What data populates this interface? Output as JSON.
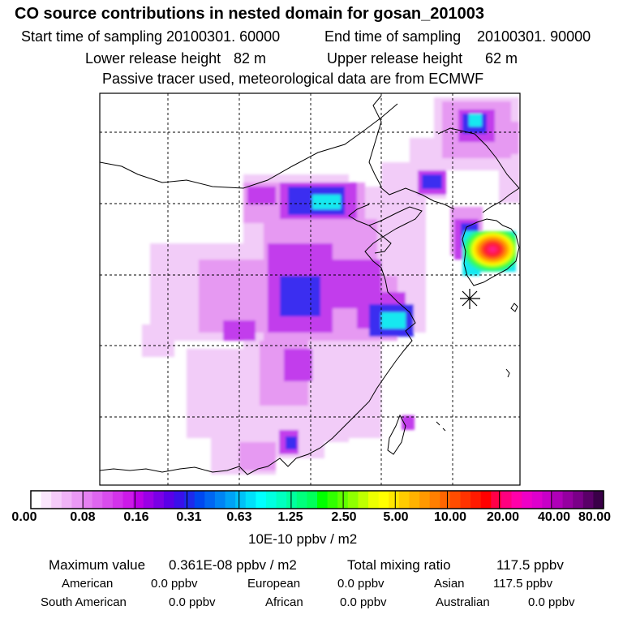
{
  "title": "CO  source contributions in nested domain for gosan_201003",
  "header": {
    "start_label": "Start time of sampling",
    "start_value": "20100301. 60000",
    "end_label": "End time of sampling",
    "end_value": "20100301. 90000",
    "lower_label": "Lower release height",
    "lower_value": "82 m",
    "upper_label": "Upper release height",
    "upper_value": "62 m",
    "note": "Passive tracer used, meteorological data are from ECMWF"
  },
  "colorbar": {
    "labels": [
      "0.00",
      "0.08",
      "0.16",
      "0.31",
      "0.63",
      "1.25",
      "2.50",
      "5.00",
      "10.00",
      "20.00",
      "40.00",
      "80.00"
    ],
    "unit": "10E-10 ppbv / m2",
    "colors": [
      "#ffffff",
      "#fae6fc",
      "#f5ccfa",
      "#f0b3f7",
      "#ea99f5",
      "#e580f2",
      "#df66f0",
      "#d94ded",
      "#d333eb",
      "#cc1ae8",
      "#bb00e6",
      "#9a00e6",
      "#7a00e6",
      "#5a00e8",
      "#3a10ea",
      "#1e2aec",
      "#0048f0",
      "#0066f2",
      "#0084f4",
      "#00a3f6",
      "#00c2f8",
      "#00e0fa",
      "#00ffff",
      "#00ffe0",
      "#00ffc0",
      "#00ff9e",
      "#00ff7c",
      "#00ff5a",
      "#00ff00",
      "#30ff00",
      "#60ff00",
      "#8fff00",
      "#bfff00",
      "#ecff00",
      "#ffff00",
      "#ffe600",
      "#ffcc00",
      "#ffb200",
      "#ff9900",
      "#ff7f00",
      "#ff6600",
      "#ff4c00",
      "#ff3300",
      "#ff1a00",
      "#ff0000",
      "#ff0048",
      "#ff0080",
      "#ff00aa",
      "#ee00c6",
      "#dd00cc",
      "#c800c8",
      "#b000b8",
      "#9500a0",
      "#7a0088",
      "#5a0068",
      "#3a0048"
    ]
  },
  "stats": {
    "max_label": "Maximum value",
    "max_value": "0.361E-08 ppbv / m2",
    "total_label": "Total mixing ratio",
    "total_value": "117.5 ppbv",
    "regions": [
      {
        "name": "American",
        "value": "0.0 ppbv"
      },
      {
        "name": "European",
        "value": "0.0 ppbv"
      },
      {
        "name": "Asian",
        "value": "117.5 ppbv"
      },
      {
        "name": "South American",
        "value": "0.0 ppbv"
      },
      {
        "name": "African",
        "value": "0.0 ppbv"
      },
      {
        "name": "Australian",
        "value": "0.0 ppbv"
      }
    ]
  },
  "map": {
    "marker": "receptor-star",
    "colors": {
      "pale": "#f2ccf8",
      "light": "#e699f2",
      "violet": "#c23cec",
      "purple": "#a020f0",
      "blue": "#3a2ef0",
      "brightblue": "#0a5cf5",
      "cyan": "#14e8f0",
      "green": "#3cff3c",
      "yellow": "#ffff00",
      "orange": "#ff9a00",
      "red": "#ff1a2a",
      "magenta": "#ff1aa0"
    }
  }
}
